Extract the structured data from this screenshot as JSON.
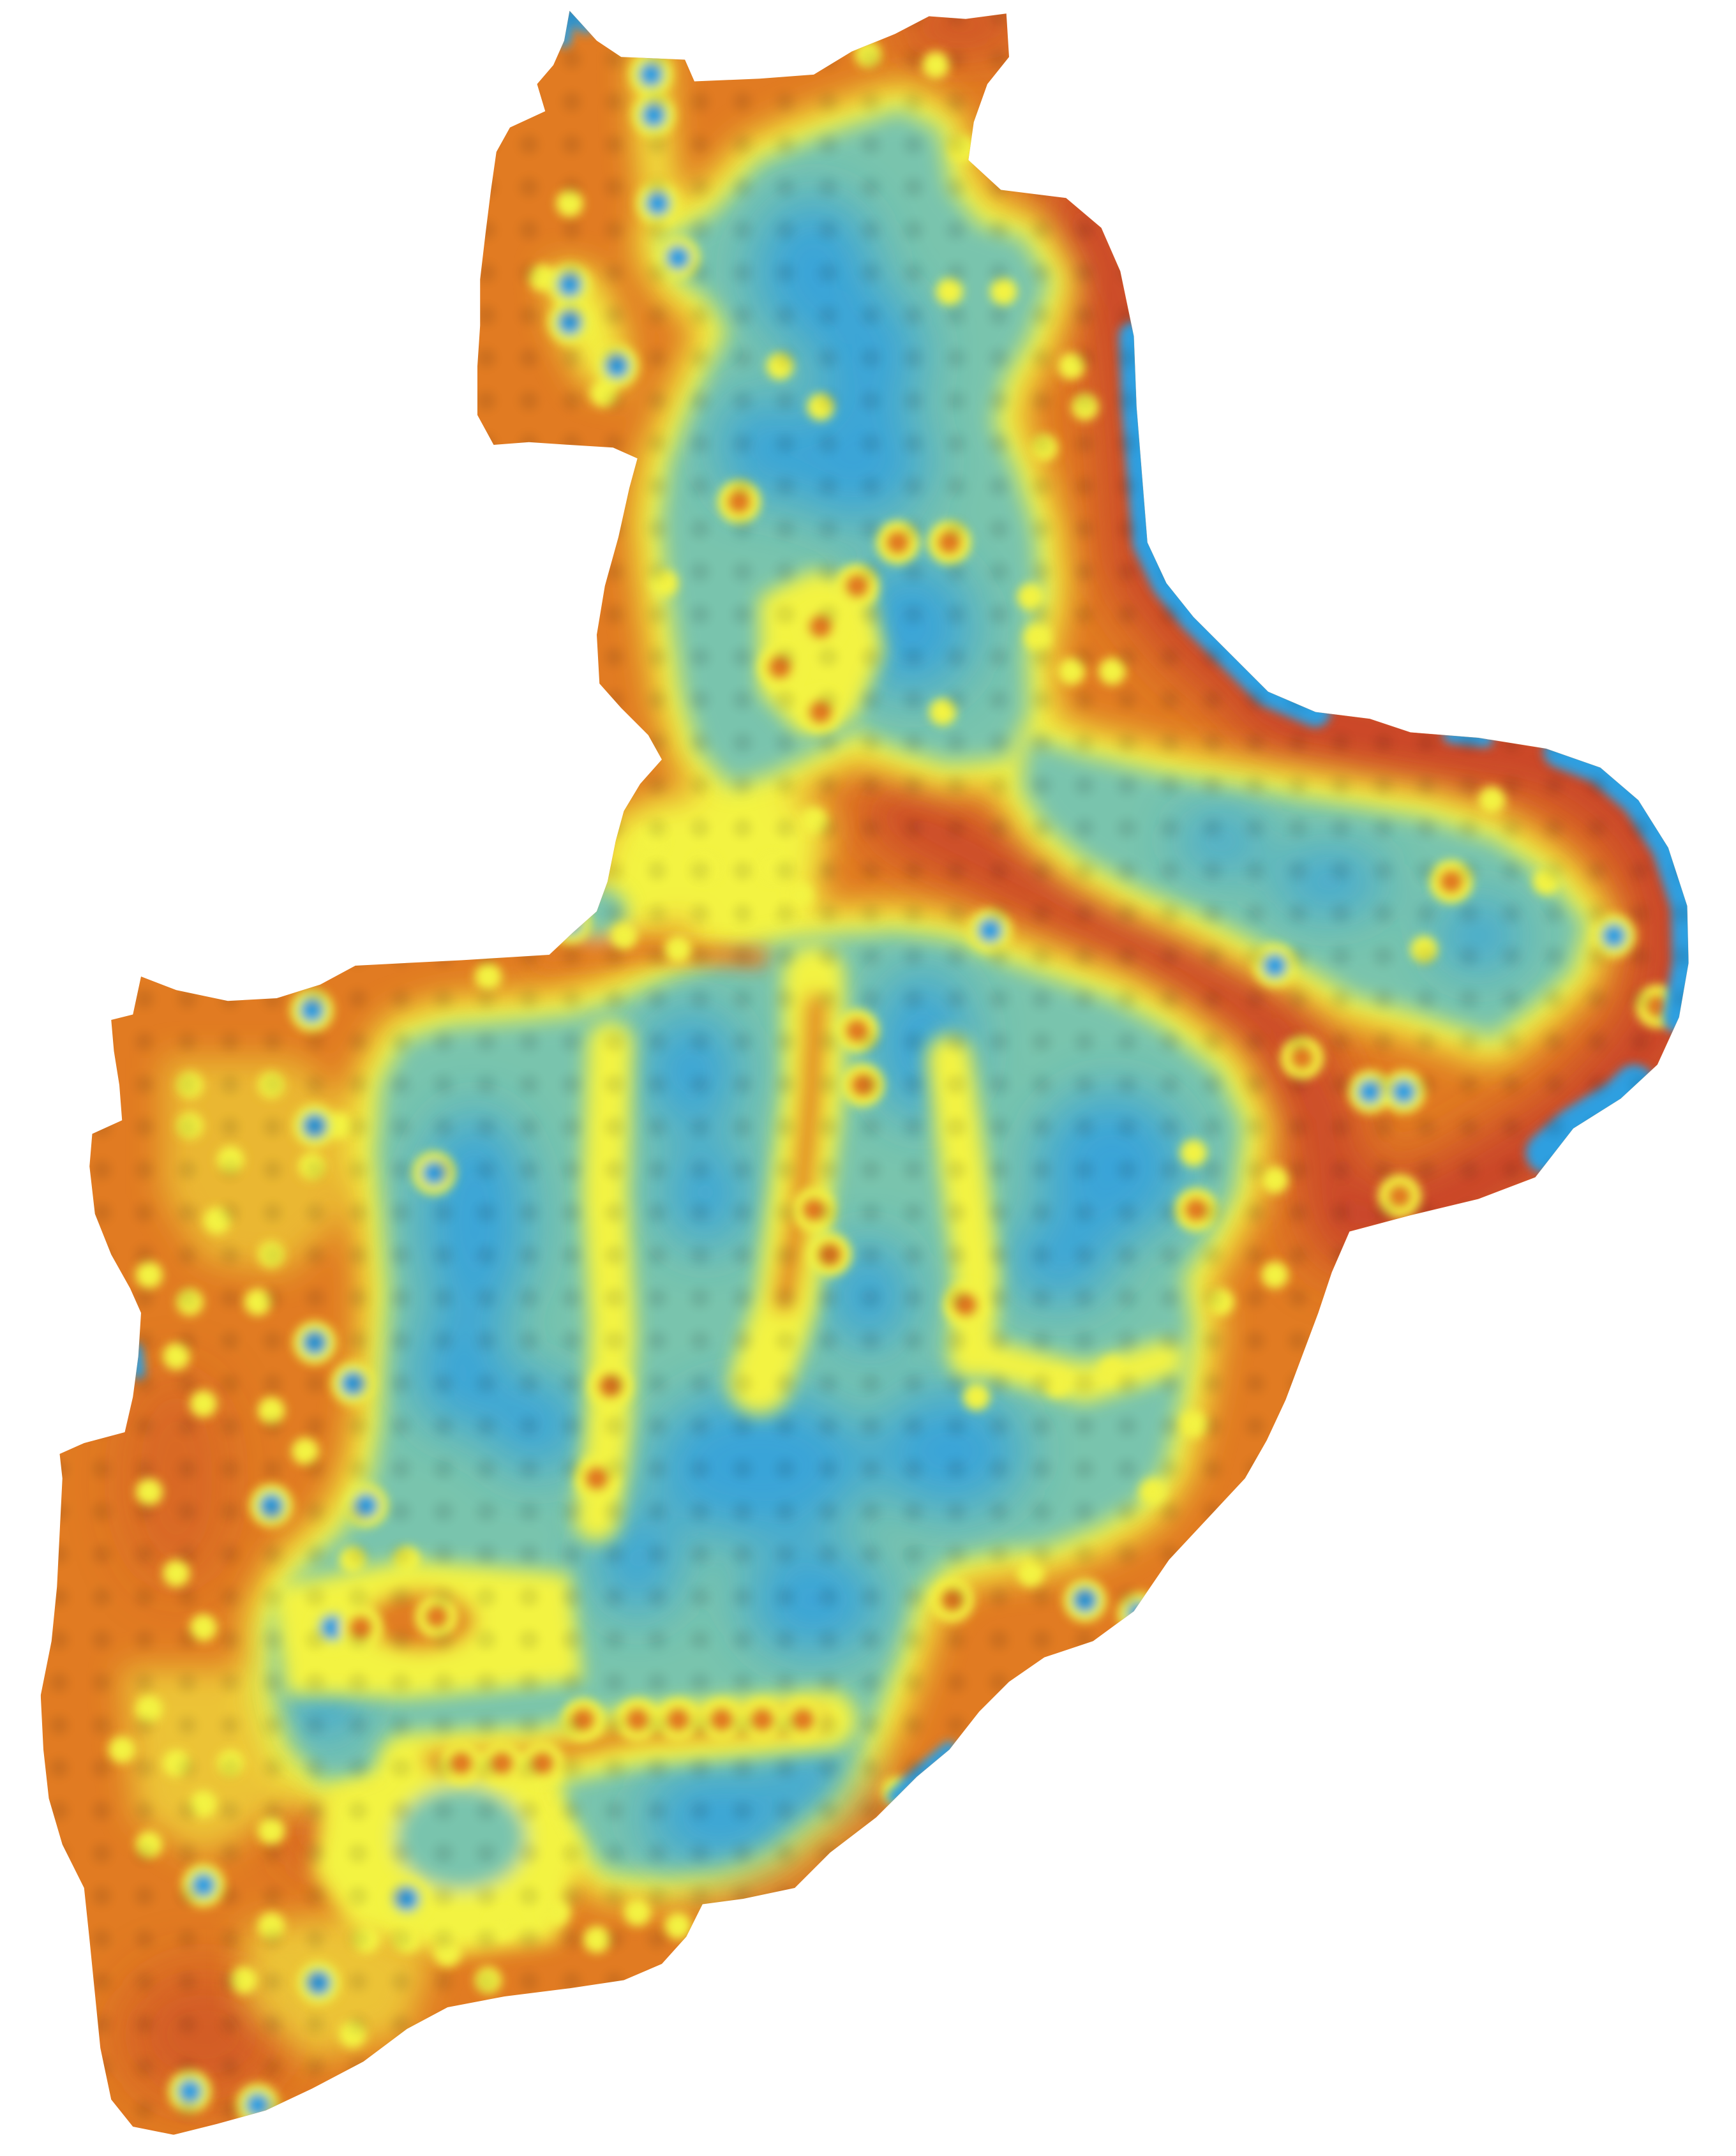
{
  "map": {
    "background": "#ffffff",
    "palette": {
      "blue": "#2f9fe0",
      "teal": "#79c4ad",
      "lime": "#c6e16a",
      "yellow": "#f3f343",
      "orange": "#e17b22",
      "red": "#c8432a"
    }
  }
}
